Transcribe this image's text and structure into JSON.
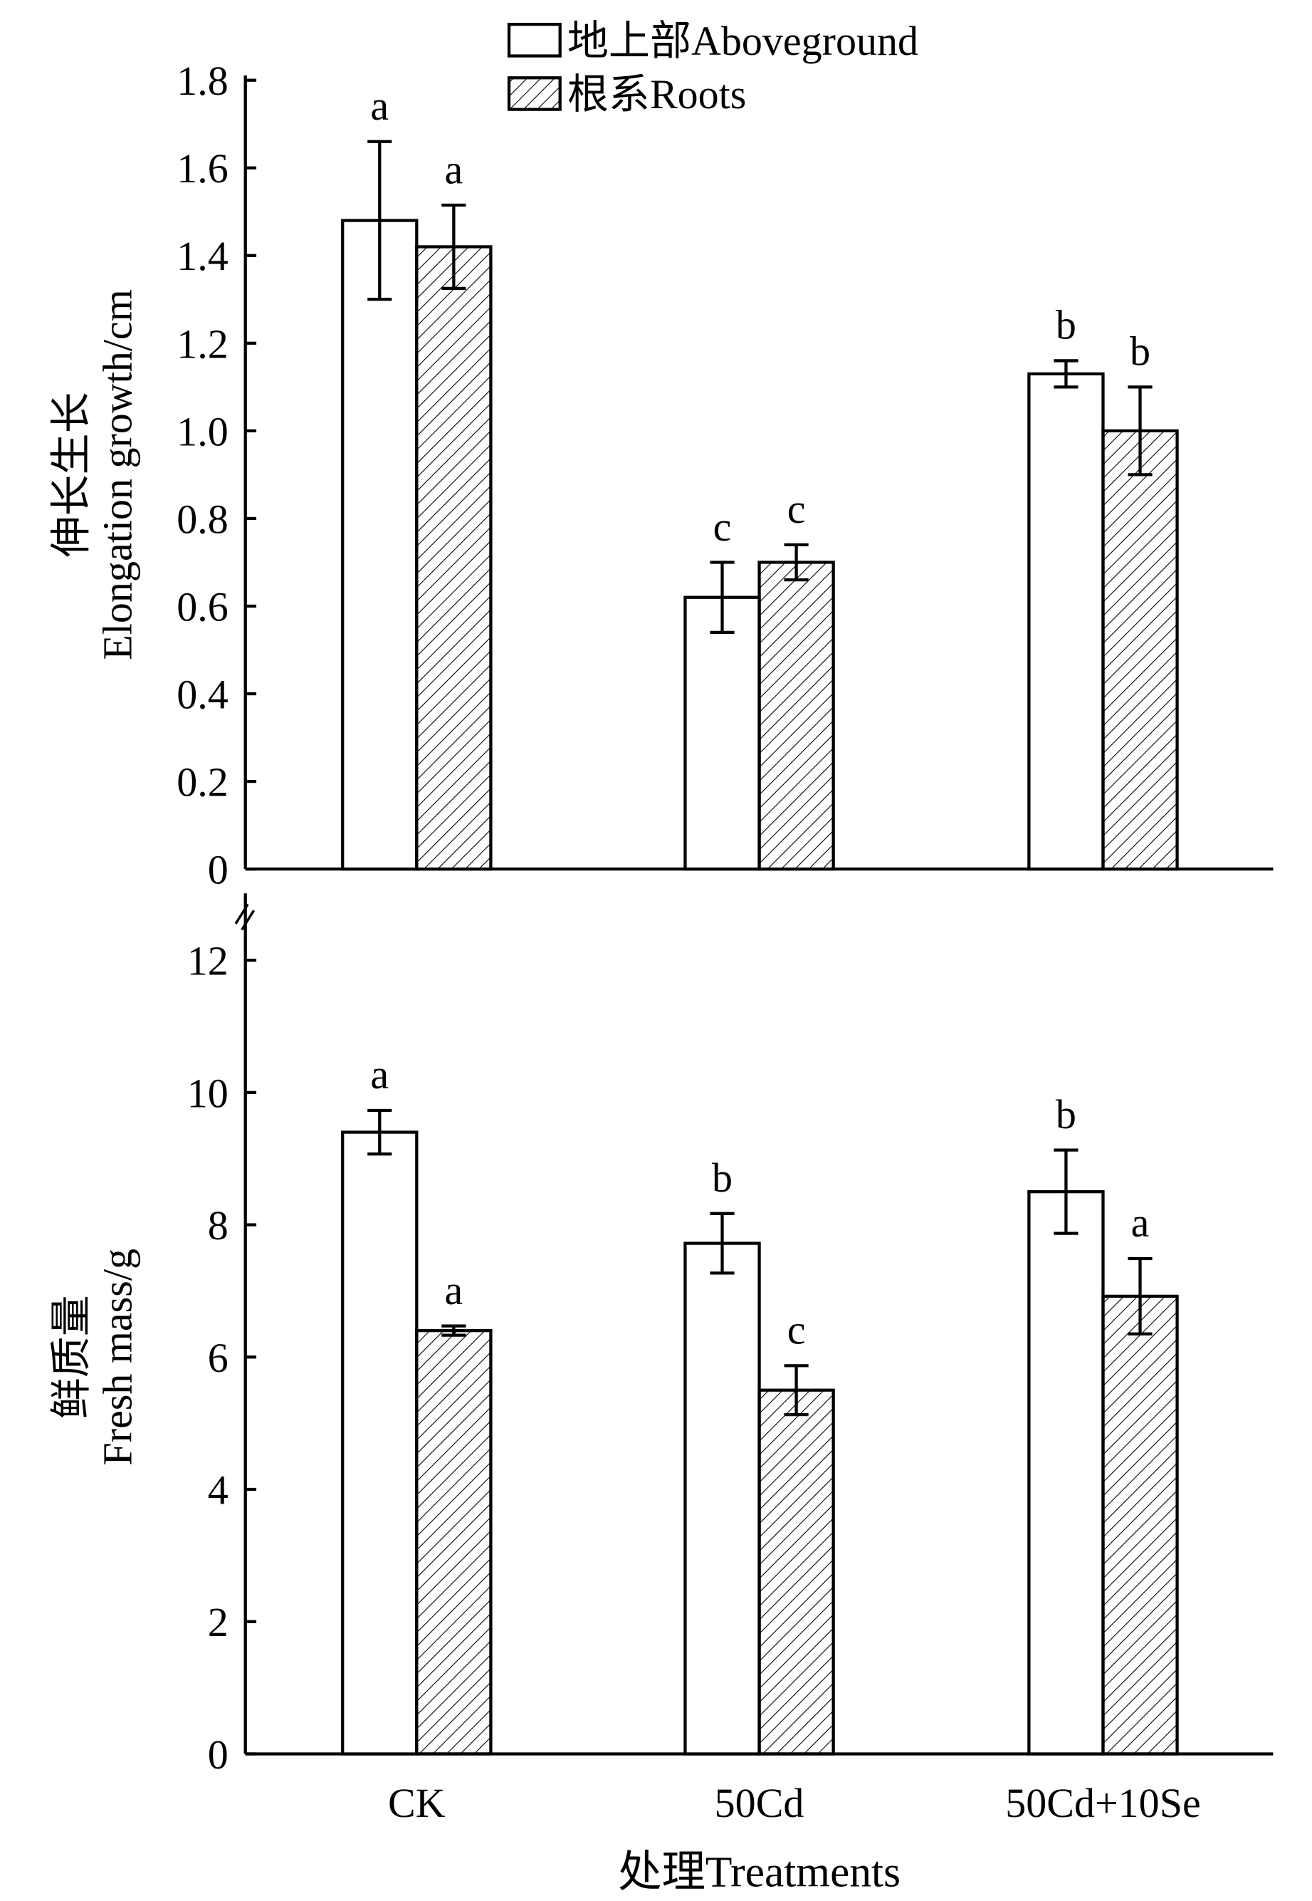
{
  "chart_data": [
    {
      "type": "bar",
      "title": "",
      "ylabel_cn": "伸长生长",
      "ylabel": "Elongation growth/cm",
      "ylim": [
        0,
        1.8
      ],
      "yticks": [
        "0",
        "0.2",
        "0.4",
        "0.6",
        "0.8",
        "1.0",
        "1.2",
        "1.4",
        "1.6",
        "1.8"
      ],
      "categories": [
        "CK",
        "50Cd",
        "50Cd+10Se"
      ],
      "series": [
        {
          "name": "地上部Aboveground",
          "values": [
            1.48,
            0.62,
            1.13
          ],
          "errors": [
            0.18,
            0.08,
            0.03
          ],
          "letters": [
            "a",
            "c",
            "b"
          ]
        },
        {
          "name": "根系Roots",
          "values": [
            1.42,
            0.7,
            1.0
          ],
          "errors": [
            0.095,
            0.04,
            0.1
          ],
          "letters": [
            "a",
            "c",
            "b"
          ]
        }
      ]
    },
    {
      "type": "bar",
      "title": "",
      "ylabel_cn": "鲜质量",
      "ylabel": "Fresh mass/g",
      "ylim": [
        0,
        12
      ],
      "yticks": [
        "0",
        "2",
        "4",
        "6",
        "8",
        "10",
        "12"
      ],
      "categories": [
        "CK",
        "50Cd",
        "50Cd+10Se"
      ],
      "xlabel": "处理Treatments",
      "series": [
        {
          "name": "地上部Aboveground",
          "values": [
            9.4,
            7.72,
            8.5
          ],
          "errors": [
            0.33,
            0.45,
            0.63
          ],
          "letters": [
            "a",
            "b",
            "b"
          ]
        },
        {
          "name": "根系Roots",
          "values": [
            6.4,
            5.5,
            6.92
          ],
          "errors": [
            0.07,
            0.37,
            0.57
          ],
          "letters": [
            "a",
            "c",
            "a"
          ]
        }
      ]
    }
  ],
  "legend": [
    "地上部Aboveground",
    "根系Roots"
  ],
  "xlabel": "处理Treatments"
}
